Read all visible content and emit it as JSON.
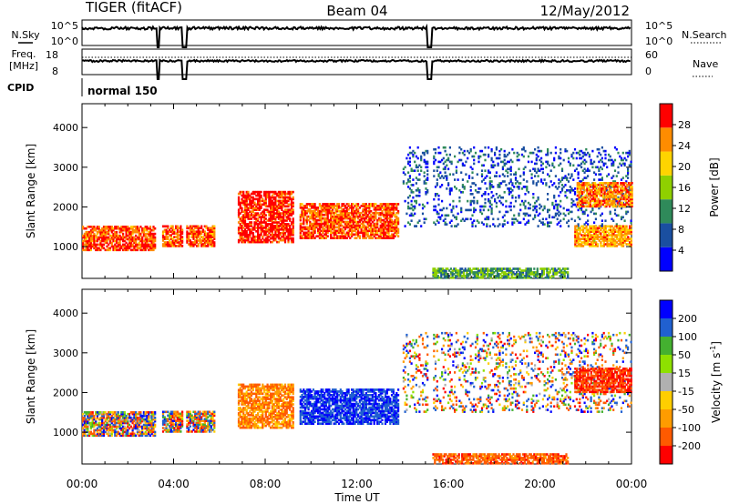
{
  "header": {
    "station": "TIGER (fitACF)",
    "beam": "Beam 04",
    "date": "12/May/2012"
  },
  "strips": {
    "nsky_label": "N.Sky",
    "nsky_ticks": [
      "10^5",
      "10^0"
    ],
    "nsearch_label": "N.Search",
    "nsearch_ticks": [
      "10^5",
      "10^0"
    ],
    "freq_label": "Freq.",
    "freq_unit": "[MHz]",
    "freq_ticks": [
      "18",
      "8"
    ],
    "nave_label": "Nave",
    "nave_ticks": [
      "60",
      "0"
    ],
    "cpid_label": "CPID",
    "cpid_value": "normal 150"
  },
  "chart_data": [
    {
      "type": "heatmap",
      "panel": "power",
      "xlabel": "",
      "ylabel": "Slant Range [km]",
      "xlim": [
        0,
        24
      ],
      "ylim": [
        200,
        4600
      ],
      "y_ticks": [
        "1000",
        "2000",
        "3000",
        "4000"
      ],
      "colorbar": {
        "label": "Power [dB]",
        "ticks": [
          "4",
          "8",
          "12",
          "16",
          "20",
          "24",
          "28"
        ],
        "range": [
          0,
          30
        ],
        "colors": [
          "#0000ff",
          "#1a4fa0",
          "#2f8a5a",
          "#8fd000",
          "#ffd400",
          "#ff8c00",
          "#ff0000"
        ]
      },
      "data_gaps_hours": [
        [
          3.25,
          3.38
        ],
        [
          4.35,
          4.55
        ],
        [
          15.1,
          15.28
        ]
      ],
      "echo_regions": [
        {
          "t": [
            0.0,
            3.2
          ],
          "range_km": [
            900,
            1500
          ],
          "power_db": 26
        },
        {
          "t": [
            3.5,
            5.8
          ],
          "range_km": [
            1000,
            1500
          ],
          "power_db": 26
        },
        {
          "t": [
            6.8,
            9.2
          ],
          "range_km": [
            1100,
            2400
          ],
          "power_db": 28
        },
        {
          "t": [
            9.5,
            13.8
          ],
          "range_km": [
            1200,
            2100
          ],
          "power_db": 26
        },
        {
          "t": [
            14.0,
            24.0
          ],
          "range_km": [
            1500,
            3500
          ],
          "power_db": 6
        },
        {
          "t": [
            15.3,
            21.2
          ],
          "range_km": [
            200,
            450
          ],
          "power_db": 12
        },
        {
          "t": [
            21.5,
            24.0
          ],
          "range_km": [
            1000,
            1500
          ],
          "power_db": 22
        },
        {
          "t": [
            21.6,
            24.0
          ],
          "range_km": [
            2000,
            2600
          ],
          "power_db": 24
        }
      ]
    },
    {
      "type": "heatmap",
      "panel": "velocity",
      "xlabel": "Time UT",
      "ylabel": "Slant Range [km]",
      "xlim": [
        0,
        24
      ],
      "ylim": [
        200,
        4600
      ],
      "x_ticks": [
        "00:00",
        "04:00",
        "08:00",
        "12:00",
        "16:00",
        "20:00",
        "00:00"
      ],
      "y_ticks": [
        "1000",
        "2000",
        "3000",
        "4000"
      ],
      "colorbar": {
        "label": "Velocity [m s",
        "label_sup": "-1",
        "label_end": "]",
        "ticks": [
          "-200",
          "-100",
          "-50",
          "-15",
          "15",
          "50",
          "100",
          "200"
        ],
        "colors": [
          "#ff0000",
          "#ff5a00",
          "#ff9c00",
          "#ffce00",
          "#b0b0b0",
          "#8ee000",
          "#44b030",
          "#2060d0",
          "#0000ff"
        ]
      },
      "data_gaps_hours": [
        [
          3.25,
          3.38
        ],
        [
          4.35,
          4.55
        ],
        [
          15.1,
          15.28
        ]
      ],
      "echo_regions": [
        {
          "t": [
            0.0,
            3.2
          ],
          "range_km": [
            900,
            1500
          ],
          "velocity": "mixed"
        },
        {
          "t": [
            3.5,
            5.8
          ],
          "range_km": [
            1000,
            1500
          ],
          "velocity": "mixed"
        },
        {
          "t": [
            6.8,
            9.2
          ],
          "range_km": [
            1100,
            2200
          ],
          "velocity": -100
        },
        {
          "t": [
            9.5,
            13.8
          ],
          "range_km": [
            1200,
            2100
          ],
          "velocity": 200
        },
        {
          "t": [
            14.0,
            24.0
          ],
          "range_km": [
            1500,
            3500
          ],
          "velocity": "mixed"
        },
        {
          "t": [
            15.3,
            21.2
          ],
          "range_km": [
            200,
            450
          ],
          "velocity": -150
        },
        {
          "t": [
            21.5,
            24.0
          ],
          "range_km": [
            2000,
            2600
          ],
          "velocity": -200
        }
      ]
    }
  ],
  "colors": {
    "frame": "#000000",
    "background": "#ffffff"
  }
}
